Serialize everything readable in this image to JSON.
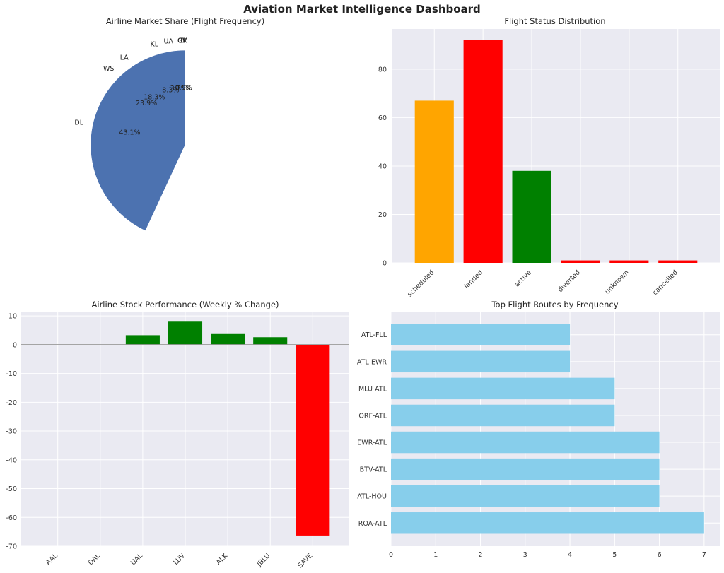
{
  "dashboard": {
    "title": "Aviation Market Intelligence Dashboard"
  },
  "chart_data": [
    {
      "id": "market",
      "type": "pie",
      "title": "Airline Market Share (Flight Frequency)",
      "labels": [
        "KL",
        "WS",
        "LA",
        "CV",
        "GK",
        "UA",
        "1I",
        "DL"
      ],
      "values": [
        8.3,
        23.9,
        18.3,
        0.9,
        0.9,
        3.7,
        0.9,
        43.1
      ],
      "value_labels": [
        "8.3%",
        "23.9%",
        "18.3%",
        "0.9%",
        "0.9%",
        "3.7%",
        "0.9%",
        "43.1%"
      ],
      "colors": [
        "#55a868",
        "#4c72b0",
        "#64b5cd",
        "#ccb974",
        "#8172b2",
        "#c44e52",
        "#55a868",
        "#4c72b0"
      ]
    },
    {
      "id": "status",
      "type": "bar",
      "title": "Flight Status Distribution",
      "categories": [
        "scheduled",
        "landed",
        "active",
        "diverted",
        "unknown",
        "cancelled"
      ],
      "values": [
        67,
        92,
        38,
        1,
        1,
        1
      ],
      "colors": [
        "#ffa500",
        "#ff0000",
        "#008000",
        "#ff0000",
        "#ff0000",
        "#ff0000"
      ],
      "ylim": [
        0,
        96.6
      ],
      "yticks": [
        0,
        20,
        40,
        60,
        80
      ]
    },
    {
      "id": "stocks",
      "type": "bar",
      "title": "Airline Stock Performance (Weekly % Change)",
      "categories": [
        "AAL",
        "DAL",
        "UAL",
        "LUV",
        "ALK",
        "JBLU",
        "SAVE"
      ],
      "values": [
        0,
        0,
        3.3,
        8.0,
        3.7,
        2.6,
        -66.3
      ],
      "positive_color": "#008000",
      "negative_color": "#ff0000",
      "ylim": [
        -70,
        11.5
      ],
      "yticks": [
        10,
        0,
        -10,
        -20,
        -30,
        -40,
        -50,
        -60,
        -70
      ]
    },
    {
      "id": "routes",
      "type": "bar",
      "orientation": "horizontal",
      "title": "Top Flight Routes by Frequency",
      "categories": [
        "ATL-FLL",
        "ATL-EWR",
        "MLU-ATL",
        "ORF-ATL",
        "EWR-ATL",
        "BTV-ATL",
        "ATL-HOU",
        "ROA-ATL"
      ],
      "values": [
        4,
        4,
        5,
        5,
        6,
        6,
        6,
        7
      ],
      "color": "#87ceeb",
      "xlim": [
        0,
        7.35
      ],
      "xticks": [
        0,
        1,
        2,
        3,
        4,
        5,
        6,
        7
      ]
    }
  ]
}
